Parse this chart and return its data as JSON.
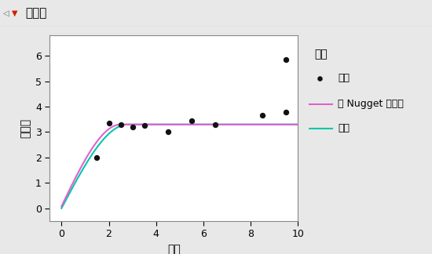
{
  "title": "变差图",
  "xlabel": "距离",
  "ylabel": "半方差",
  "xlim": [
    -0.5,
    10
  ],
  "ylim": [
    -0.5,
    6.8
  ],
  "xticks": [
    0,
    2,
    4,
    6,
    8,
    10
  ],
  "yticks": [
    0,
    1,
    2,
    3,
    4,
    5,
    6
  ],
  "scatter_x": [
    1.5,
    2.0,
    2.5,
    3.0,
    3.5,
    4.5,
    5.5,
    6.5,
    8.5,
    9.5
  ],
  "scatter_y": [
    2.0,
    3.35,
    3.3,
    3.2,
    3.25,
    3.0,
    3.45,
    3.3,
    3.65,
    3.8
  ],
  "outlier_x": [
    9.5
  ],
  "outlier_y": [
    5.85
  ],
  "nugget_color": "#e060d0",
  "spherical_color": "#00c8a8",
  "scatter_color": "#111111",
  "background_color": "#e8e8e8",
  "plot_bg_color": "#ffffff",
  "legend_title": "图例",
  "legend_nugget": "带 Nugget 的球形",
  "legend_spherical": "球形",
  "legend_empirical": "经验",
  "sill": 3.3,
  "nugget": 0.0,
  "nugget_shift": 0.08,
  "range_nugget": 2.5,
  "range_spherical": 2.8,
  "title_bar_color": "#d4d0c8",
  "title_border_color": "#999999"
}
